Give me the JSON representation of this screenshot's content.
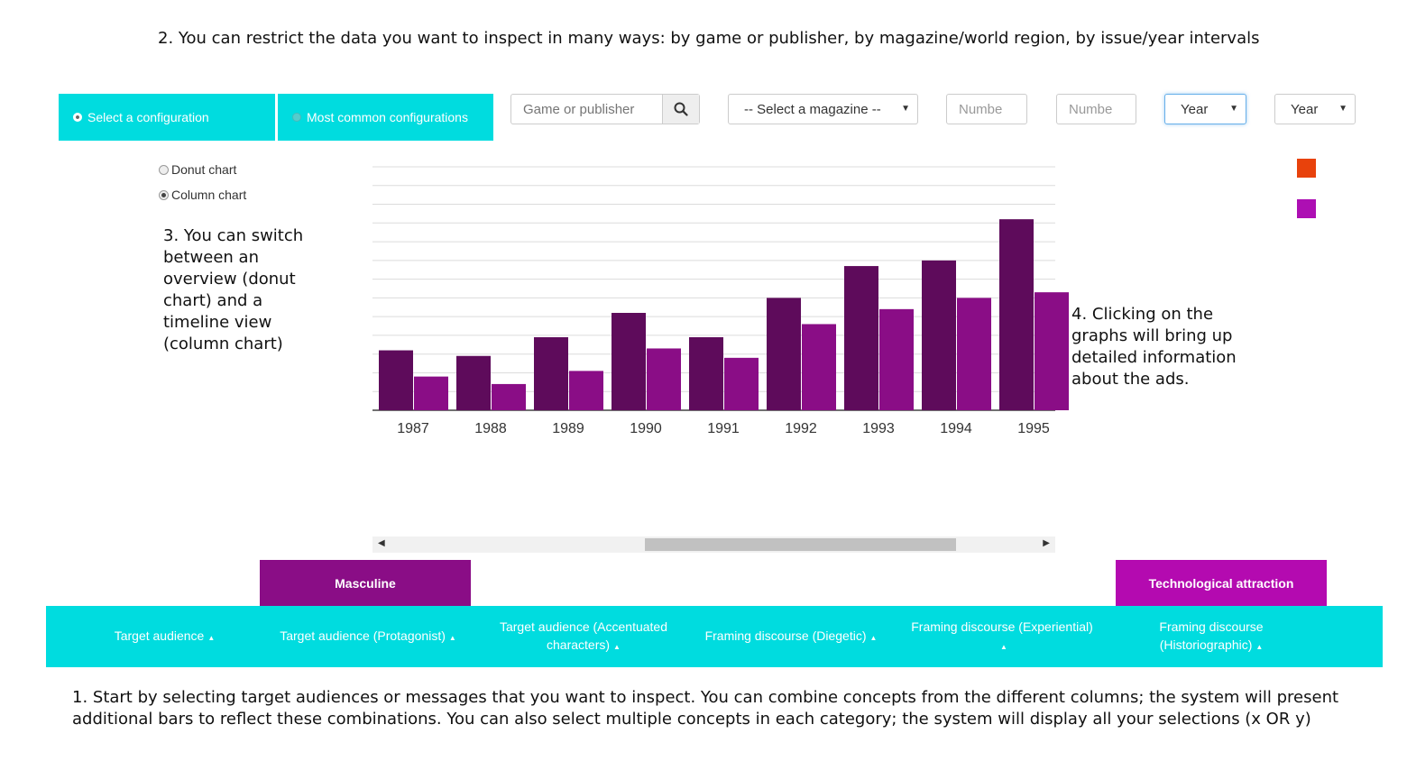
{
  "annotations": {
    "step2": "2. You can restrict the data you want to inspect in many ways: by game or publisher, by magazine/world region, by issue/year intervals",
    "step3": "3. You can switch between an overview (donut chart) and a timeline view (column chart)",
    "step4": "4. Clicking on the graphs will bring up detailed information about the ads.",
    "step1": "1. Start by selecting target audiences or messages that you want to inspect. You can combine concepts from the different columns; the system will present additional bars to reflect these combinations. You can also select multiple concepts in each category; the system will display all your selections (x OR y)"
  },
  "config_tabs": {
    "select": "Select a configuration",
    "common": "Most common configurations"
  },
  "filters": {
    "search_placeholder": "Game or publisher",
    "magazine": "-- Select a magazine --",
    "issue_from_placeholder": "Numbe",
    "issue_to_placeholder": "Numbe",
    "year_from": "Year",
    "year_to": "Year"
  },
  "chart_type": {
    "donut": "Donut chart",
    "column": "Column chart"
  },
  "legend_colors": [
    "#e8420c",
    "#ad0fb3"
  ],
  "chart_data": {
    "type": "bar",
    "categories": [
      "1987",
      "1988",
      "1989",
      "1990",
      "1991",
      "1992",
      "1993",
      "1994",
      "1995"
    ],
    "series": [
      {
        "color": "#5e0b5b",
        "values": [
          3.2,
          2.9,
          3.9,
          5.2,
          3.9,
          6.0,
          7.7,
          8.0,
          10.2
        ]
      },
      {
        "color": "#8a0d86",
        "values": [
          1.8,
          1.4,
          2.1,
          3.3,
          2.8,
          4.6,
          5.4,
          6.0,
          6.3
        ]
      }
    ],
    "ylim": [
      0,
      13
    ],
    "grid": true
  },
  "concepts": {
    "masculine": "Masculine",
    "tech": "Technological attraction"
  },
  "categories": [
    "Target audience",
    "Target audience (Protagonist)",
    "Target audience (Accentuated characters)",
    "Framing discourse (Diegetic)",
    "Framing discourse (Experiential)",
    "Framing discourse (Historiographic)"
  ]
}
